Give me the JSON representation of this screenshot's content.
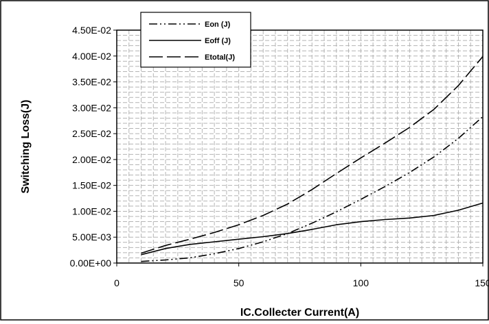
{
  "chart_data": {
    "type": "line",
    "xlabel": "IC.Collecter Current(A)",
    "ylabel": "Switching Loss(J)",
    "xlim": [
      0,
      150
    ],
    "ylim": [
      0,
      0.045
    ],
    "x_ticks": [
      "0",
      "50",
      "100",
      "150"
    ],
    "y_ticks": [
      "0.00E+00",
      "5.00E-03",
      "1.00E-02",
      "1.50E-02",
      "2.00E-02",
      "2.50E-02",
      "3.00E-02",
      "3.50E-02",
      "4.00E-02",
      "4.50E-02"
    ],
    "grid": true,
    "legend_position": "top-left",
    "series": [
      {
        "name": "Eon (J)",
        "line_style": "dash-dot-dot",
        "x": [
          10,
          20,
          30,
          40,
          50,
          60,
          70,
          80,
          90,
          100,
          110,
          120,
          130,
          140,
          150
        ],
        "y": [
          0.0003,
          0.0006,
          0.001,
          0.0018,
          0.0028,
          0.0041,
          0.0057,
          0.0077,
          0.0099,
          0.0123,
          0.0148,
          0.0175,
          0.0205,
          0.0241,
          0.0283
        ]
      },
      {
        "name": "Eoff (J)",
        "line_style": "solid",
        "x": [
          10,
          20,
          30,
          40,
          50,
          60,
          70,
          80,
          90,
          100,
          110,
          120,
          130,
          140,
          150
        ],
        "y": [
          0.0016,
          0.0028,
          0.0036,
          0.0041,
          0.0046,
          0.0051,
          0.0057,
          0.0065,
          0.0074,
          0.008,
          0.0084,
          0.0087,
          0.0092,
          0.0102,
          0.0116
        ]
      },
      {
        "name": "Etotal(J)",
        "line_style": "long-dash",
        "x": [
          10,
          20,
          30,
          40,
          50,
          60,
          70,
          80,
          90,
          100,
          110,
          120,
          130,
          140,
          150
        ],
        "y": [
          0.0019,
          0.0034,
          0.0046,
          0.0059,
          0.0074,
          0.0092,
          0.0114,
          0.0142,
          0.0173,
          0.0203,
          0.0232,
          0.0262,
          0.0297,
          0.0343,
          0.0399
        ]
      }
    ]
  }
}
